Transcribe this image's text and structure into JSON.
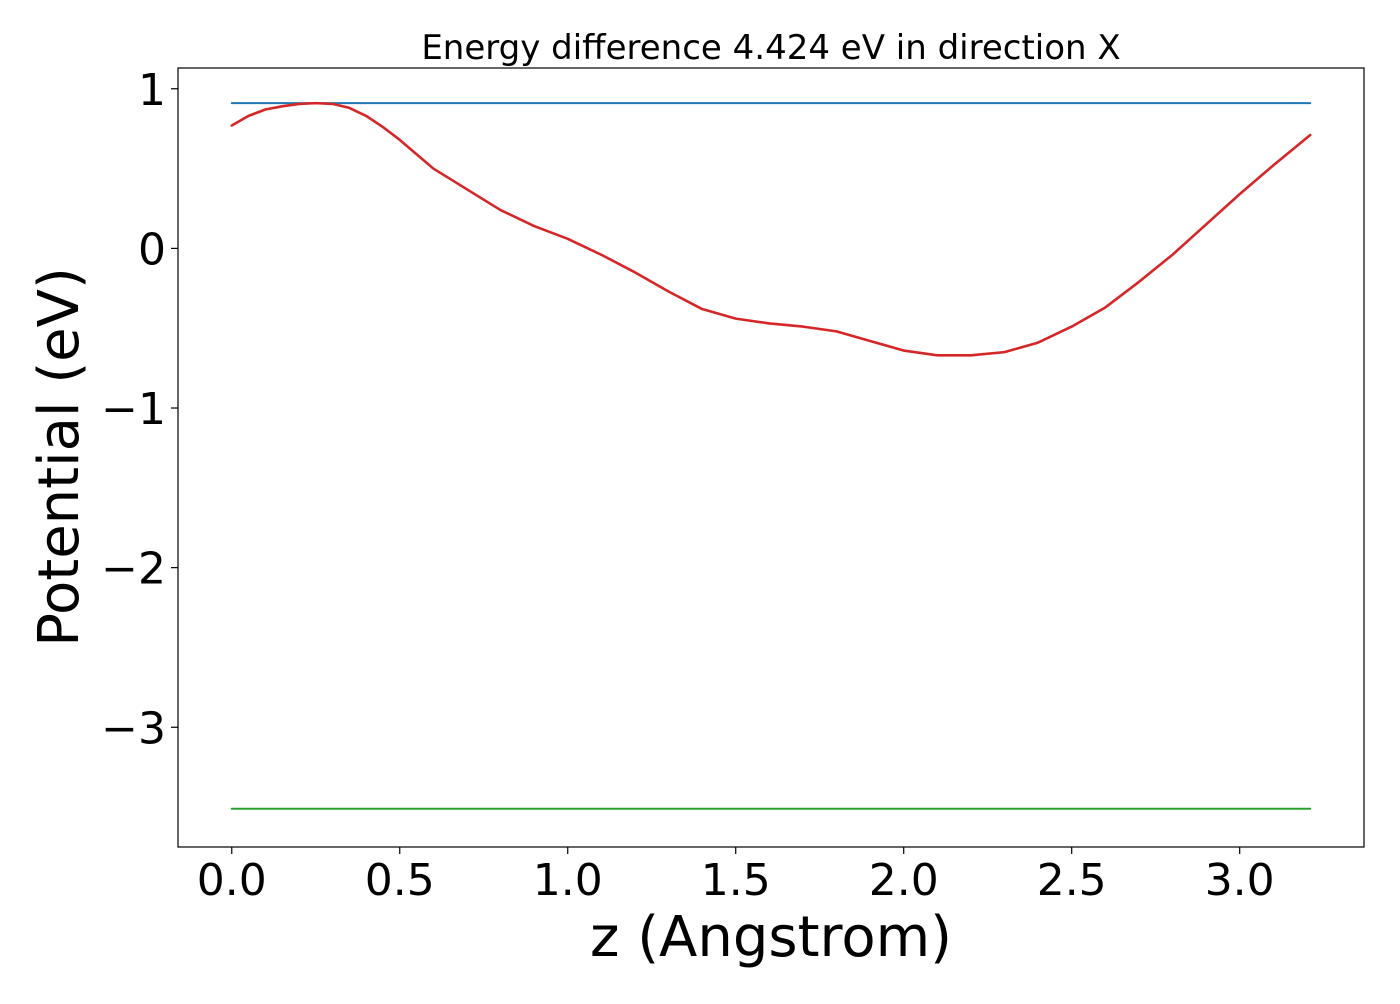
{
  "chart_data": {
    "type": "line",
    "title": "Energy difference 4.424 eV in direction X",
    "xlabel": "z (Angstrom)",
    "ylabel": "Potential (eV)",
    "xlim": [
      -0.16,
      3.37
    ],
    "ylim": [
      -3.75,
      1.13
    ],
    "x_ticks": [
      0.0,
      0.5,
      1.0,
      1.5,
      2.0,
      2.5,
      3.0
    ],
    "x_tick_labels": [
      "0.0",
      "0.5",
      "1.0",
      "1.5",
      "2.0",
      "2.5",
      "3.0"
    ],
    "y_ticks": [
      1,
      0,
      -1,
      -2,
      -3
    ],
    "y_tick_labels": [
      "1",
      "0",
      "−1",
      "−2",
      "−3"
    ],
    "grid": false,
    "legend": "none",
    "series": [
      {
        "color": "#1f77b4",
        "x": [
          0.0,
          3.21
        ],
        "y": [
          0.91,
          0.91
        ]
      },
      {
        "color": "#d62728",
        "x": [
          0.0,
          0.05,
          0.1,
          0.15,
          0.2,
          0.25,
          0.3,
          0.35,
          0.4,
          0.45,
          0.5,
          0.55,
          0.6,
          0.7,
          0.8,
          0.9,
          1.0,
          1.1,
          1.2,
          1.3,
          1.4,
          1.5,
          1.6,
          1.7,
          1.8,
          1.9,
          2.0,
          2.1,
          2.2,
          2.3,
          2.4,
          2.5,
          2.6,
          2.7,
          2.8,
          2.9,
          3.0,
          3.1,
          3.21
        ],
        "y": [
          0.77,
          0.83,
          0.87,
          0.89,
          0.905,
          0.91,
          0.905,
          0.88,
          0.83,
          0.76,
          0.68,
          0.59,
          0.5,
          0.37,
          0.24,
          0.14,
          0.06,
          -0.04,
          -0.15,
          -0.27,
          -0.38,
          -0.44,
          -0.47,
          -0.49,
          -0.52,
          -0.58,
          -0.64,
          -0.67,
          -0.67,
          -0.65,
          -0.59,
          -0.49,
          -0.37,
          -0.21,
          -0.04,
          0.15,
          0.34,
          0.52,
          0.71
        ]
      },
      {
        "color": "#2ca02c",
        "x": [
          0.0,
          3.21
        ],
        "y": [
          -3.51,
          -3.51
        ]
      }
    ]
  }
}
